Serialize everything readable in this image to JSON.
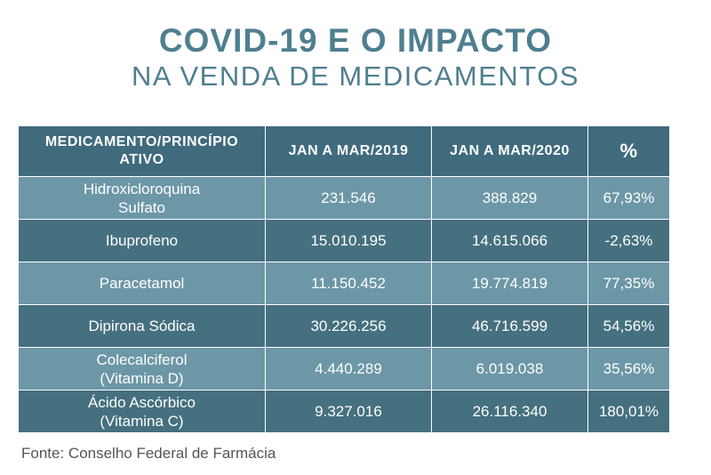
{
  "title_line1": "COVID-19 E O IMPACTO",
  "title_line2": "NA VENDA DE MEDICAMENTOS",
  "source": "Fonte: Conselho Federal de Farmácia",
  "colors": {
    "title": "#4f7f8f",
    "header_bg": "#3f6b7d",
    "row_light": "#6c97a7",
    "row_dark": "#45707f"
  },
  "chart_data": {
    "type": "table",
    "columns": [
      "MEDICAMENTO/PRINCÍPIO ATIVO",
      "JAN A MAR/2019",
      "JAN A MAR/2020",
      "%"
    ],
    "rows": [
      {
        "name": "Hidroxicloroquina Sulfato",
        "name_lines": [
          "Hidroxicloroquina",
          "Sulfato"
        ],
        "v2019": "231.546",
        "v2020": "388.829",
        "pct": "67,93%"
      },
      {
        "name": "Ibuprofeno",
        "name_lines": [
          "Ibuprofeno"
        ],
        "v2019": "15.010.195",
        "v2020": "14.615.066",
        "pct": "-2,63%"
      },
      {
        "name": "Paracetamol",
        "name_lines": [
          "Paracetamol"
        ],
        "v2019": "11.150.452",
        "v2020": "19.774.819",
        "pct": "77,35%"
      },
      {
        "name": "Dipirona Sódica",
        "name_lines": [
          "Dipirona Sódica"
        ],
        "v2019": "30.226.256",
        "v2020": "46.716.599",
        "pct": "54,56%"
      },
      {
        "name": "Colecalciferol (Vitamina D)",
        "name_lines": [
          "Colecalciferol",
          "(Vitamina D)"
        ],
        "v2019": "4.440.289",
        "v2020": "6.019.038",
        "pct": "35,56%"
      },
      {
        "name": "Ácido Ascórbico (Vitamina C)",
        "name_lines": [
          "Ácido Ascórbico",
          "(Vitamina C)"
        ],
        "v2019": "9.327.016",
        "v2020": "26.116.340",
        "pct": "180,01%"
      }
    ]
  }
}
